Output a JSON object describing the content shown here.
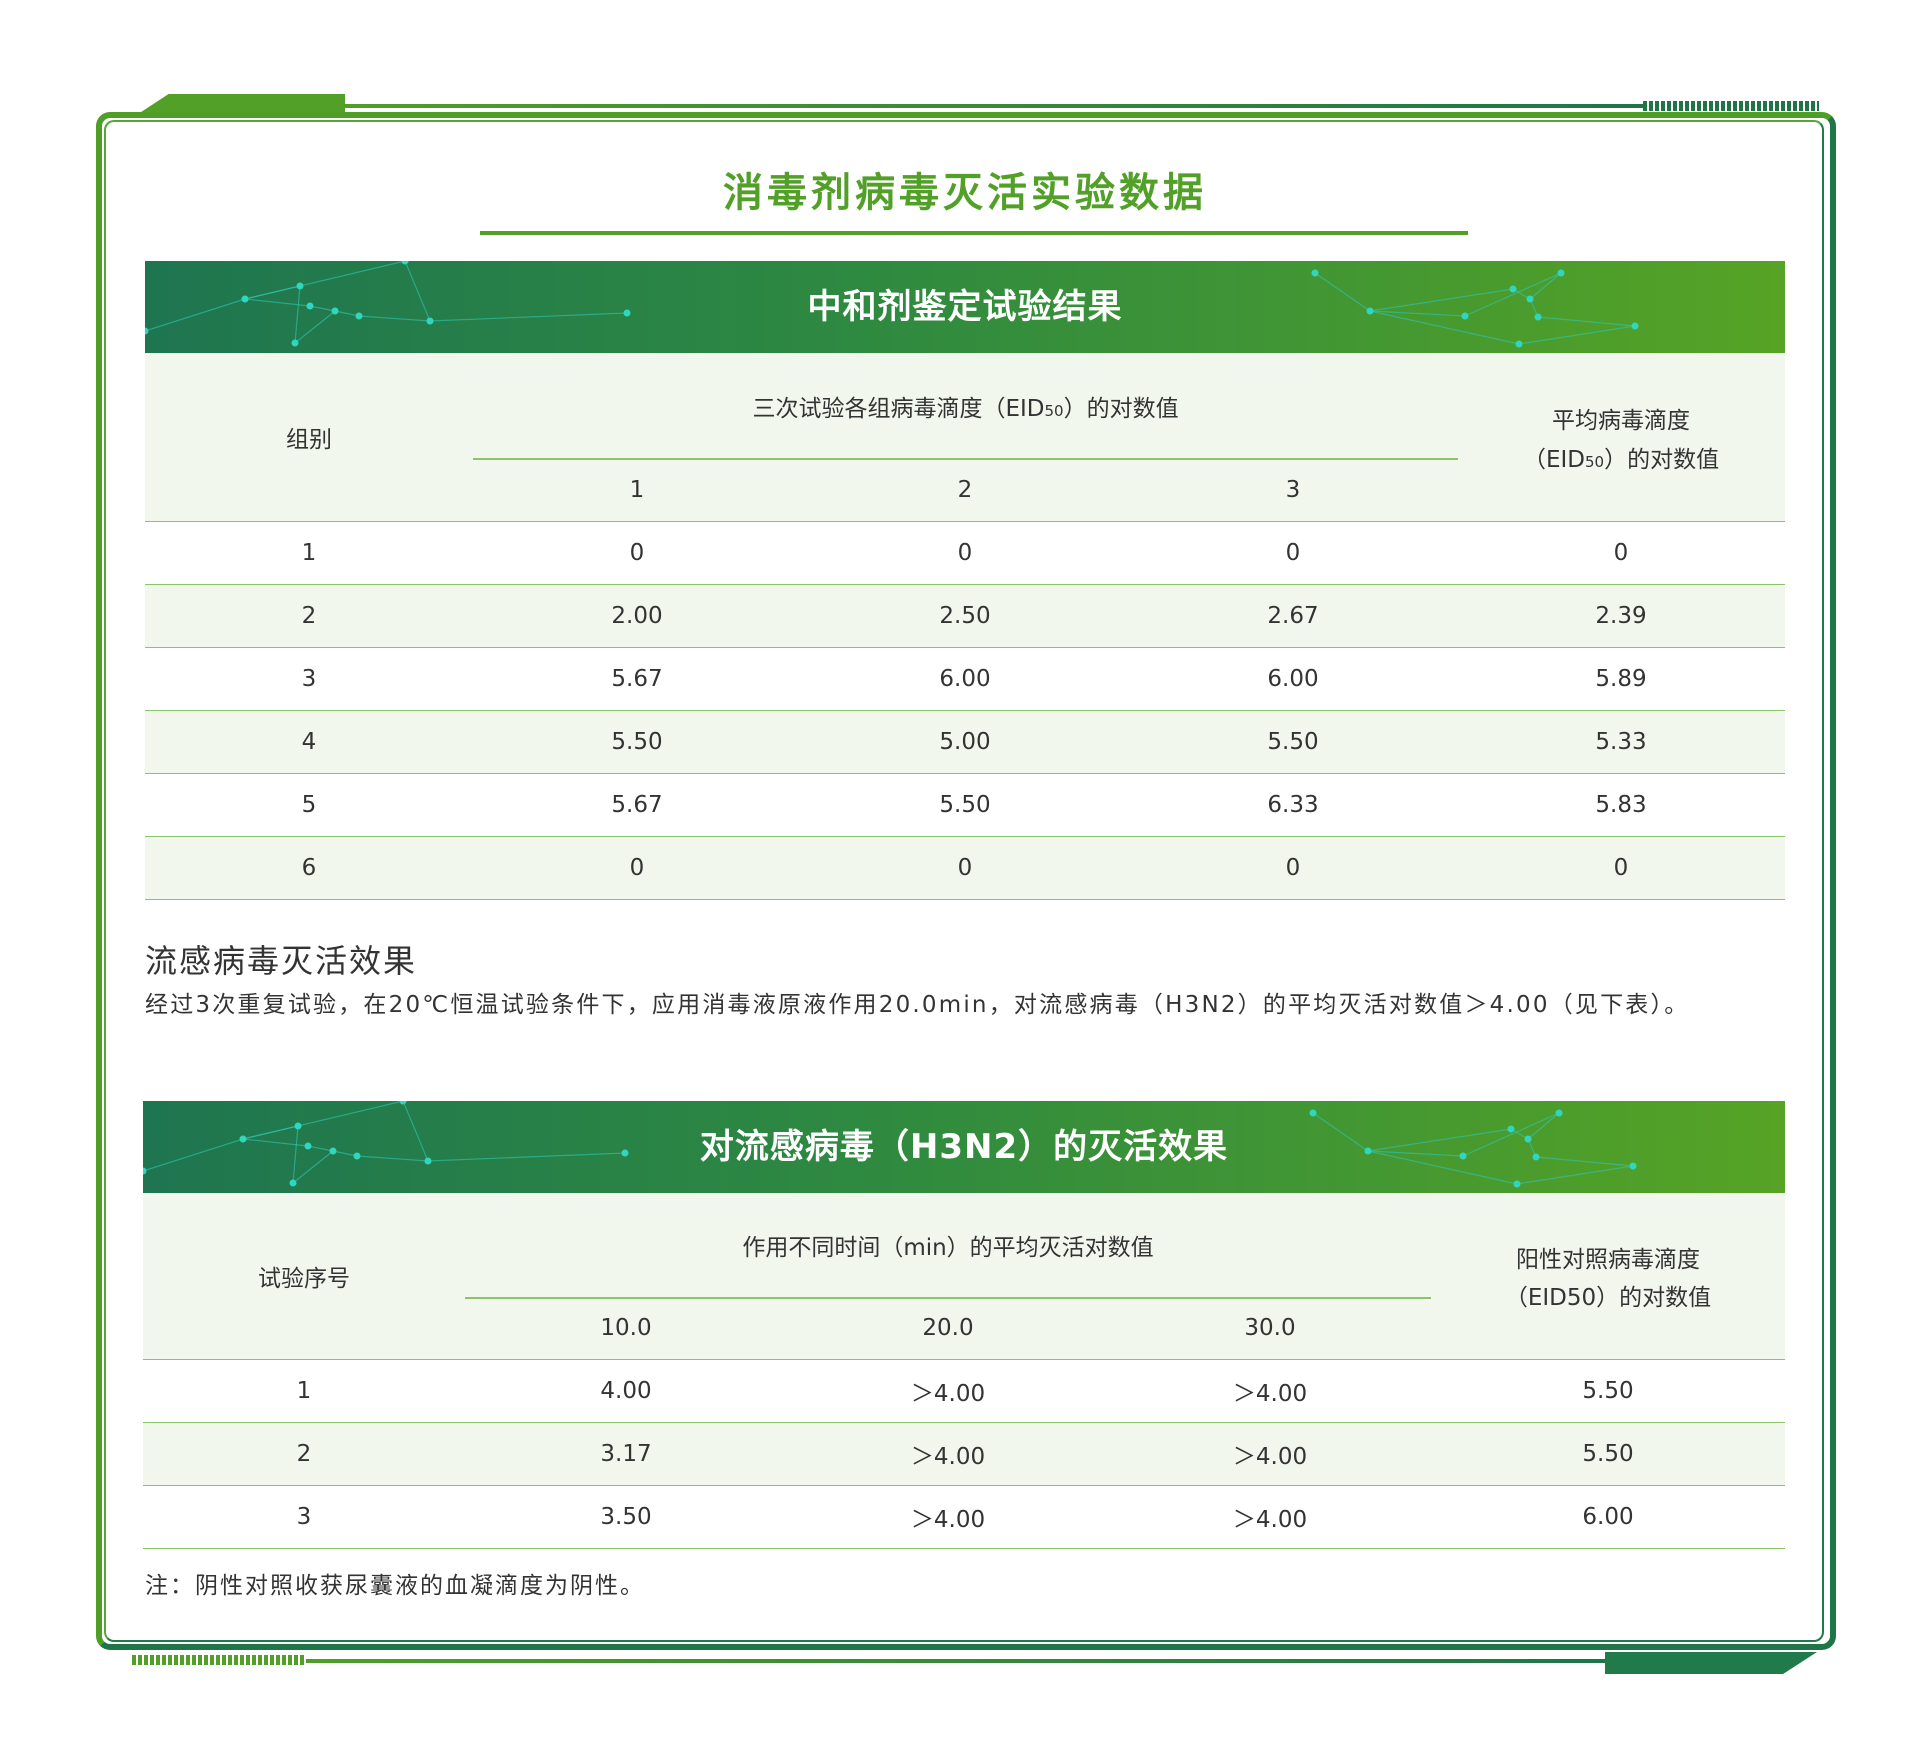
{
  "title": "消毒剂病毒灭活实验数据",
  "table1": {
    "banner": "中和剂鉴定试验结果",
    "header": {
      "group": "组别",
      "span_pre": "三次试验各组病毒滴度（EID",
      "span_sub": "50",
      "span_post": "）的对数值",
      "sub_cols": [
        "1",
        "2",
        "3"
      ],
      "avg_line1": "平均病毒滴度",
      "avg_pre": "（EID",
      "avg_sub": "50",
      "avg_post": "）的对数值"
    },
    "rows": [
      [
        "1",
        "0",
        "0",
        "0",
        "0"
      ],
      [
        "2",
        "2.00",
        "2.50",
        "2.67",
        "2.39"
      ],
      [
        "3",
        "5.67",
        "6.00",
        "6.00",
        "5.89"
      ],
      [
        "4",
        "5.50",
        "5.00",
        "5.50",
        "5.33"
      ],
      [
        "5",
        "5.67",
        "5.50",
        "6.33",
        "5.83"
      ],
      [
        "6",
        "0",
        "0",
        "0",
        "0"
      ]
    ]
  },
  "section": {
    "heading": "流感病毒灭活效果",
    "paragraph": "经过3次重复试验，在20℃恒温试验条件下，应用消毒液原液作用20.0min，对流感病毒（H3N2）的平均灭活对数值＞4.00（见下表）。"
  },
  "table2": {
    "banner": "对流感病毒（H3N2）的灭活效果",
    "header": {
      "trial": "试验序号",
      "span": "作用不同时间（min）的平均灭活对数值",
      "sub_cols": [
        "10.0",
        "20.0",
        "30.0"
      ],
      "pos_line1": "阳性对照病毒滴度",
      "pos_line2": "（EID50）的对数值"
    },
    "rows": [
      [
        "1",
        "4.00",
        "＞4.00",
        "＞4.00",
        "5.50"
      ],
      [
        "2",
        "3.17",
        "＞4.00",
        "＞4.00",
        "5.50"
      ],
      [
        "3",
        "3.50",
        "＞4.00",
        "＞4.00",
        "6.00"
      ]
    ]
  },
  "note": "注：阴性对照收获尿囊液的血凝滴度为阴性。",
  "colors": {
    "primary_green": "#52a028",
    "dark_green": "#1f7548",
    "row_tint": "#f2f7ee",
    "rule": "#8cc46a"
  }
}
